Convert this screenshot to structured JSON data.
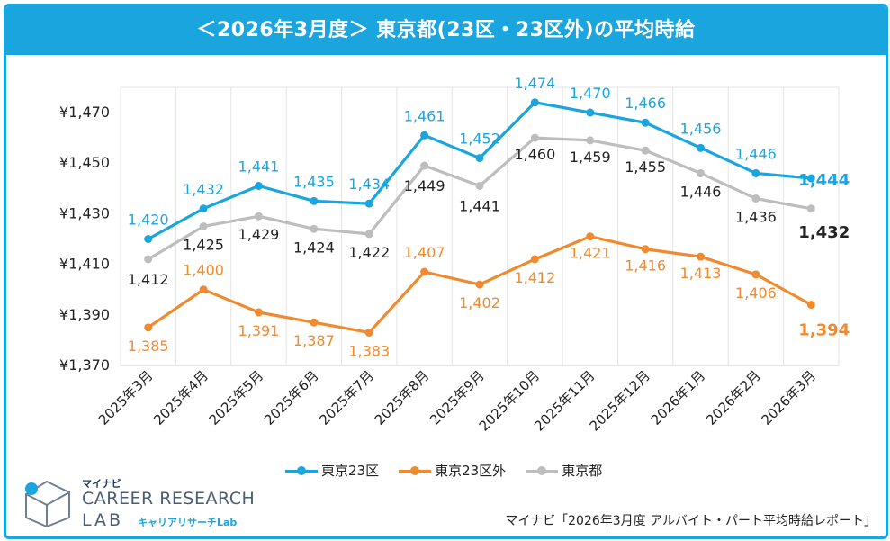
{
  "title": "＜2026年3月度＞ 東京都(23区・23区外)の平均時給",
  "source": "マイナビ「2026年3月度 アルバイト・パート平均時給レポート」",
  "logo": {
    "brand": "マイナビ",
    "name": "CAREER RESEARCH",
    "lab": "LAB",
    "sub": "キャリアリサーチLab"
  },
  "colors": {
    "tokyo23": "#1aa5de",
    "outside23": "#ef8a2f",
    "tokyo": "#bdbdbd",
    "accent": "#1aa5de"
  },
  "chart_data": {
    "type": "line",
    "categories": [
      "2025年3月",
      "2025年4月",
      "2025年5月",
      "2025年6月",
      "2025年7月",
      "2025年8月",
      "2025年9月",
      "2025年10月",
      "2025年11月",
      "2025年12月",
      "2026年1月",
      "2026年2月",
      "2026年3月"
    ],
    "y_ticks": [
      "¥1,470",
      "¥1,450",
      "¥1,430",
      "¥1,410",
      "¥1,390",
      "¥1,370"
    ],
    "ylim": [
      1370,
      1470
    ],
    "grid": "vertical",
    "legend_position": "bottom",
    "series": [
      {
        "name": "東京23区",
        "color": "#1aa5de",
        "values": [
          1420,
          1432,
          1441,
          1435,
          1434,
          1461,
          1452,
          1474,
          1470,
          1466,
          1456,
          1446,
          1444
        ],
        "labels": [
          "1,420",
          "1,432",
          "1,441",
          "1,435",
          "1,434",
          "1,461",
          "1,452",
          "1,474",
          "1,470",
          "1,466",
          "1,456",
          "1,446",
          "1,444"
        ]
      },
      {
        "name": "東京23区外",
        "color": "#ef8a2f",
        "values": [
          1385,
          1400,
          1391,
          1387,
          1383,
          1407,
          1402,
          1412,
          1421,
          1416,
          1413,
          1406,
          1394
        ],
        "labels": [
          "1,385",
          "1,400",
          "1,391",
          "1,387",
          "1,383",
          "1,407",
          "1,402",
          "1,412",
          "1,421",
          "1,416",
          "1,413",
          "1,406",
          "1,394"
        ]
      },
      {
        "name": "東京都",
        "color": "#bdbdbd",
        "values": [
          1412,
          1425,
          1429,
          1424,
          1422,
          1449,
          1441,
          1460,
          1459,
          1455,
          1446,
          1436,
          1432
        ],
        "labels": [
          "1,412",
          "1,425",
          "1,429",
          "1,424",
          "1,422",
          "1,449",
          "1,441",
          "1,460",
          "1,459",
          "1,455",
          "1,446",
          "1,436",
          "1,432"
        ]
      }
    ]
  }
}
